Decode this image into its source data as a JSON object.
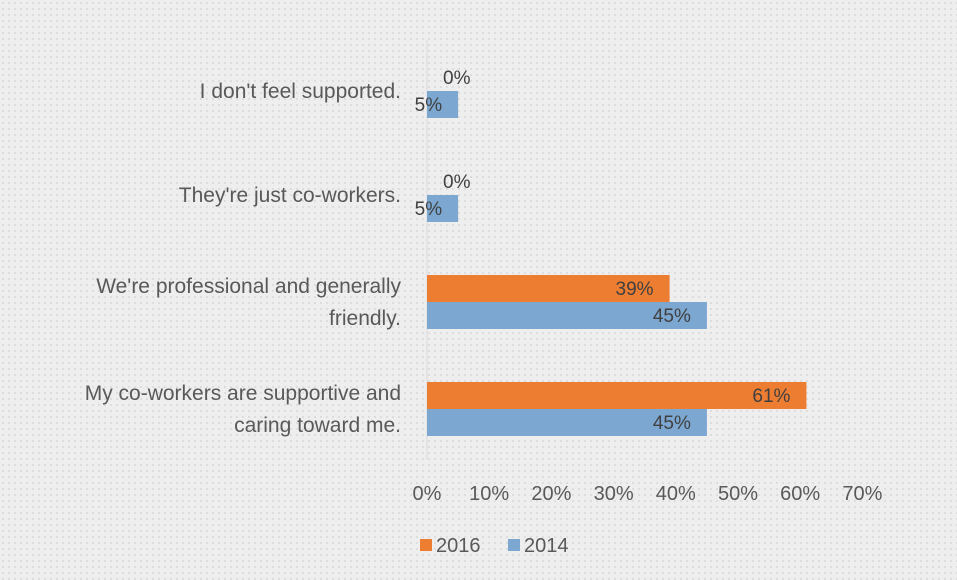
{
  "chart_data": {
    "type": "bar",
    "orientation": "horizontal",
    "categories": [
      [
        "I don't feel supported."
      ],
      [
        "They're just co-workers."
      ],
      [
        "We're professional and generally",
        "friendly."
      ],
      [
        "My co-workers are supportive and",
        "caring toward me."
      ]
    ],
    "series": [
      {
        "name": "2016",
        "color": "#ed7d31",
        "values": [
          0,
          0,
          39,
          61
        ],
        "labels": [
          "0%",
          "0%",
          "39%",
          "61%"
        ]
      },
      {
        "name": "2014",
        "color": "#7ba7d1",
        "values": [
          5,
          5,
          45,
          45
        ],
        "labels": [
          "5%",
          "5%",
          "45%",
          "45%"
        ]
      }
    ],
    "xlim": [
      0,
      70
    ],
    "xticks": [
      0,
      10,
      20,
      30,
      40,
      50,
      60,
      70
    ],
    "xtick_labels": [
      "0%",
      "10%",
      "20%",
      "30%",
      "40%",
      "50%",
      "60%",
      "70%"
    ],
    "legend_position": "bottom",
    "grid": false
  }
}
